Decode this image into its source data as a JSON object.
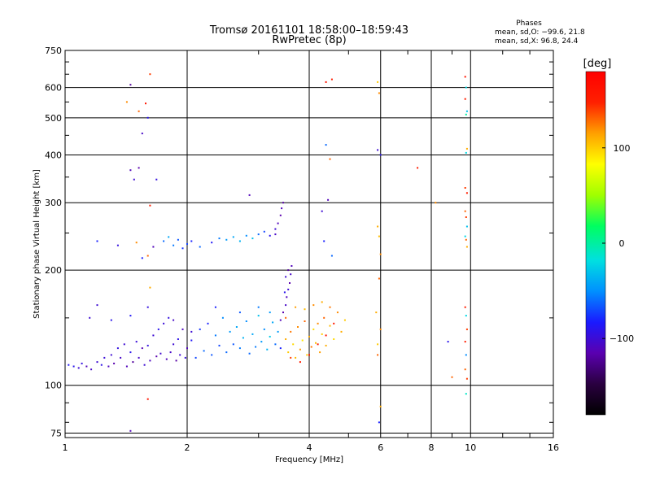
{
  "chart_data": {
    "type": "scatter",
    "title": "Tromsø 20161101 18:58:00–18:59:43",
    "subtitle": "RwPretec (8p)",
    "xlabel": "Frequency [MHz]",
    "ylabel": "Stationary phase Virtual Height [km]",
    "x_scale": "log",
    "y_scale": "log",
    "xlim": [
      1,
      16
    ],
    "ylim": [
      73,
      750
    ],
    "x_ticks": [
      1,
      2,
      4,
      6,
      8,
      10,
      16
    ],
    "x_tick_labels": [
      "1",
      "2",
      "4",
      "6",
      "8",
      "10",
      "16"
    ],
    "y_ticks": [
      75,
      100,
      200,
      300,
      400,
      500,
      600,
      750
    ],
    "y_tick_labels": [
      "75",
      "100",
      "200",
      "300",
      "400",
      "500",
      "600",
      "750"
    ],
    "grid": true,
    "info": {
      "heading": "Phases",
      "line_o": "mean, sd,O: −99.6, 21.8",
      "line_x": "mean, sd,X:  96.8, 24.4"
    },
    "colorbar": {
      "label": "[deg]",
      "range": [
        -180,
        180
      ],
      "ticks": [
        100,
        0,
        -100
      ],
      "tick_labels": [
        "100",
        "0",
        "−100"
      ],
      "colors": [
        "#000000",
        "#2a0040",
        "#5a00b0",
        "#1a1aff",
        "#0090ff",
        "#00e0e0",
        "#00ff60",
        "#a0ff00",
        "#ffff00",
        "#ffa000",
        "#ff2000",
        "#ff0000"
      ]
    },
    "series": [
      {
        "points": [
          [
            1.02,
            113,
            -85
          ],
          [
            1.05,
            112,
            -90
          ],
          [
            1.08,
            111,
            -100
          ],
          [
            1.1,
            114,
            -95
          ],
          [
            1.13,
            112,
            -110
          ],
          [
            1.16,
            110,
            -105
          ],
          [
            1.2,
            115,
            -100
          ],
          [
            1.23,
            113,
            -92
          ],
          [
            1.25,
            118,
            -98
          ],
          [
            1.28,
            112,
            -108
          ],
          [
            1.3,
            120,
            -100
          ],
          [
            1.32,
            114,
            -115
          ],
          [
            1.35,
            125,
            -95
          ],
          [
            1.37,
            118,
            -105
          ],
          [
            1.4,
            128,
            -100
          ],
          [
            1.42,
            112,
            -110
          ],
          [
            1.45,
            122,
            -90
          ],
          [
            1.47,
            115,
            -120
          ],
          [
            1.5,
            130,
            -98
          ],
          [
            1.52,
            118,
            -105
          ],
          [
            1.55,
            125,
            -112
          ],
          [
            1.57,
            113,
            -100
          ],
          [
            1.6,
            127,
            -95
          ],
          [
            1.62,
            116,
            -108
          ],
          [
            1.65,
            135,
            -100
          ],
          [
            1.68,
            119,
            -115
          ],
          [
            1.7,
            140,
            -90
          ],
          [
            1.72,
            121,
            -102
          ],
          [
            1.75,
            145,
            -98
          ],
          [
            1.78,
            117,
            -110
          ],
          [
            1.8,
            150,
            -95
          ],
          [
            1.82,
            122,
            -105
          ],
          [
            1.85,
            128,
            -100
          ],
          [
            1.88,
            116,
            -118
          ],
          [
            1.9,
            132,
            -92
          ],
          [
            1.92,
            120,
            -100
          ],
          [
            1.95,
            140,
            -108
          ],
          [
            1.98,
            118,
            -96
          ],
          [
            2.0,
            125,
            -110
          ],
          [
            2.05,
            131,
            -85
          ],
          [
            2.1,
            118,
            -70
          ],
          [
            2.15,
            140,
            -75
          ],
          [
            2.2,
            123,
            -60
          ],
          [
            2.25,
            145,
            -80
          ],
          [
            2.3,
            120,
            -65
          ],
          [
            2.35,
            135,
            -55
          ],
          [
            2.4,
            127,
            -70
          ],
          [
            2.45,
            150,
            -50
          ],
          [
            2.5,
            122,
            -60
          ],
          [
            2.55,
            138,
            -45
          ],
          [
            2.6,
            128,
            -65
          ],
          [
            2.65,
            142,
            -40
          ],
          [
            2.7,
            125,
            -55
          ],
          [
            2.75,
            133,
            -35
          ],
          [
            2.8,
            147,
            -50
          ],
          [
            2.85,
            121,
            -60
          ],
          [
            2.9,
            136,
            -40
          ],
          [
            2.95,
            126,
            -55
          ],
          [
            3.0,
            152,
            -30
          ],
          [
            3.05,
            130,
            -45
          ],
          [
            3.1,
            140,
            -50
          ],
          [
            3.15,
            124,
            -35
          ],
          [
            3.2,
            134,
            -25
          ],
          [
            3.25,
            146,
            -40
          ],
          [
            3.3,
            128,
            -60
          ],
          [
            3.35,
            138,
            -45
          ],
          [
            3.4,
            125,
            -80
          ],
          [
            1.45,
            152,
            -85
          ],
          [
            1.6,
            160,
            -95
          ],
          [
            1.85,
            148,
            -105
          ],
          [
            2.05,
            138,
            -100
          ],
          [
            2.35,
            160,
            -80
          ],
          [
            2.7,
            155,
            -65
          ],
          [
            3.0,
            160,
            -55
          ],
          [
            3.2,
            155,
            -45
          ],
          [
            1.3,
            148,
            -90
          ],
          [
            1.15,
            150,
            -100
          ],
          [
            3.5,
            132,
            110
          ],
          [
            3.55,
            122,
            100
          ],
          [
            3.6,
            138,
            125
          ],
          [
            3.65,
            128,
            95
          ],
          [
            3.7,
            118,
            105
          ],
          [
            3.75,
            142,
            120
          ],
          [
            3.8,
            124,
            115
          ],
          [
            3.85,
            131,
            90
          ],
          [
            3.9,
            147,
            130
          ],
          [
            3.95,
            120,
            100
          ],
          [
            4.0,
            134,
            110
          ],
          [
            4.05,
            126,
            125
          ],
          [
            4.1,
            140,
            95
          ],
          [
            4.15,
            129,
            105
          ],
          [
            4.2,
            145,
            120
          ],
          [
            4.25,
            122,
            115
          ],
          [
            4.3,
            136,
            100
          ],
          [
            4.35,
            150,
            130
          ],
          [
            4.4,
            127,
            110
          ],
          [
            4.5,
            143,
            105
          ],
          [
            4.6,
            132,
            95
          ],
          [
            4.7,
            155,
            120
          ],
          [
            4.8,
            138,
            110
          ],
          [
            4.9,
            148,
            100
          ],
          [
            3.5,
            150,
            130
          ],
          [
            3.7,
            160,
            115
          ],
          [
            3.9,
            158,
            105
          ],
          [
            4.1,
            162,
            120
          ],
          [
            4.3,
            165,
            110
          ],
          [
            4.5,
            160,
            125
          ],
          [
            3.6,
            118,
            140
          ],
          [
            3.8,
            115,
            150
          ],
          [
            4.0,
            120,
            155
          ],
          [
            4.2,
            128,
            150
          ],
          [
            4.4,
            135,
            160
          ],
          [
            4.6,
            145,
            150
          ],
          [
            3.4,
            148,
            -110
          ],
          [
            3.45,
            155,
            -115
          ],
          [
            3.5,
            162,
            -105
          ],
          [
            3.52,
            170,
            -110
          ],
          [
            3.55,
            178,
            -100
          ],
          [
            3.58,
            185,
            -115
          ],
          [
            3.6,
            195,
            -105
          ],
          [
            3.62,
            205,
            -110
          ],
          [
            3.55,
            200,
            -120
          ],
          [
            3.5,
            192,
            -100
          ],
          [
            3.48,
            175,
            -90
          ],
          [
            1.2,
            238,
            -80
          ],
          [
            1.35,
            232,
            -95
          ],
          [
            1.5,
            236,
            120
          ],
          [
            1.65,
            230,
            -110
          ],
          [
            1.75,
            238,
            -60
          ],
          [
            1.8,
            244,
            -40
          ],
          [
            1.85,
            232,
            -55
          ],
          [
            1.9,
            240,
            -65
          ],
          [
            1.95,
            228,
            -75
          ],
          [
            2.0,
            234,
            -70
          ],
          [
            2.05,
            238,
            -80
          ],
          [
            2.15,
            230,
            -60
          ],
          [
            2.3,
            236,
            -85
          ],
          [
            2.4,
            242,
            -55
          ],
          [
            2.5,
            240,
            -45
          ],
          [
            2.6,
            244,
            -40
          ],
          [
            2.7,
            238,
            -35
          ],
          [
            2.8,
            246,
            -50
          ],
          [
            2.9,
            242,
            -30
          ],
          [
            3.0,
            248,
            -60
          ],
          [
            3.1,
            252,
            -70
          ],
          [
            3.2,
            246,
            -90
          ],
          [
            3.3,
            256,
            -100
          ],
          [
            3.35,
            265,
            -110
          ],
          [
            3.4,
            278,
            -115
          ],
          [
            3.42,
            290,
            -110
          ],
          [
            3.45,
            300,
            -120
          ],
          [
            3.3,
            248,
            -105
          ],
          [
            1.45,
            610,
            -120
          ],
          [
            1.52,
            520,
            130
          ],
          [
            1.6,
            500,
            -90
          ],
          [
            1.62,
            650,
            140
          ],
          [
            1.58,
            545,
            160
          ],
          [
            1.42,
            550,
            120
          ],
          [
            1.55,
            455,
            -105
          ],
          [
            1.45,
            365,
            -110
          ],
          [
            1.52,
            370,
            -115
          ],
          [
            1.48,
            345,
            -100
          ],
          [
            1.68,
            345,
            -95
          ],
          [
            1.62,
            295,
            150
          ],
          [
            1.55,
            215,
            -80
          ],
          [
            1.6,
            218,
            130
          ],
          [
            1.62,
            180,
            110
          ],
          [
            1.6,
            92,
            160
          ],
          [
            1.45,
            76,
            -110
          ],
          [
            1.2,
            162,
            -100
          ],
          [
            2.85,
            314,
            -110
          ],
          [
            4.4,
            620,
            160
          ],
          [
            4.55,
            630,
            150
          ],
          [
            4.4,
            425,
            -60
          ],
          [
            4.5,
            390,
            130
          ],
          [
            4.45,
            305,
            -110
          ],
          [
            4.3,
            285,
            -100
          ],
          [
            4.35,
            238,
            -80
          ],
          [
            4.55,
            218,
            -60
          ],
          [
            5.9,
            620,
            100
          ],
          [
            5.95,
            580,
            120
          ],
          [
            5.9,
            412,
            -100
          ],
          [
            6.0,
            400,
            -90
          ],
          [
            5.9,
            260,
            110
          ],
          [
            5.95,
            245,
            105
          ],
          [
            6.0,
            220,
            120
          ],
          [
            5.95,
            190,
            130
          ],
          [
            5.85,
            155,
            110
          ],
          [
            6.0,
            140,
            120
          ],
          [
            5.9,
            128,
            100
          ],
          [
            5.9,
            120,
            130
          ],
          [
            5.95,
            80,
            -80
          ],
          [
            6.0,
            88,
            110
          ],
          [
            7.4,
            370,
            150
          ],
          [
            8.2,
            300,
            120
          ],
          [
            8.8,
            130,
            -90
          ],
          [
            9.0,
            105,
            130
          ],
          [
            9.7,
            640,
            160
          ],
          [
            9.75,
            600,
            -20
          ],
          [
            9.7,
            560,
            150
          ],
          [
            9.8,
            520,
            -30
          ],
          [
            9.75,
            510,
            0
          ],
          [
            9.8,
            415,
            110
          ],
          [
            9.75,
            405,
            -20
          ],
          [
            9.7,
            328,
            140
          ],
          [
            9.8,
            318,
            150
          ],
          [
            9.7,
            285,
            130
          ],
          [
            9.75,
            275,
            140
          ],
          [
            9.8,
            260,
            -30
          ],
          [
            9.7,
            245,
            -20
          ],
          [
            9.75,
            240,
            130
          ],
          [
            9.8,
            230,
            110
          ],
          [
            9.7,
            160,
            150
          ],
          [
            9.75,
            152,
            -20
          ],
          [
            9.8,
            140,
            140
          ],
          [
            9.7,
            130,
            150
          ],
          [
            9.75,
            120,
            -50
          ],
          [
            9.7,
            110,
            130
          ],
          [
            9.8,
            104,
            140
          ],
          [
            9.75,
            95,
            -10
          ]
        ]
      }
    ]
  }
}
